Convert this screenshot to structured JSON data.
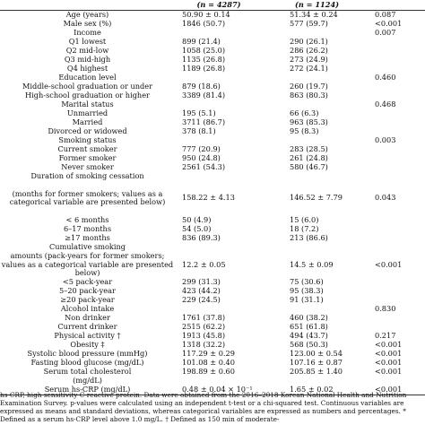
{
  "header": {
    "n1": "(n = 4287)",
    "n2": "(n = 1124)"
  },
  "rows": [
    {
      "label": "Age (years)",
      "v1": "50.90 ± 0.14",
      "v2": "51.34 ± 0.24",
      "p": "0.087"
    },
    {
      "label": "Male sex (%)",
      "v1": "1846 (50.7)",
      "v2": "577 (59.7)",
      "p": "<0.001"
    },
    {
      "label": "Income",
      "v1": "",
      "v2": "",
      "p": "0.007"
    },
    {
      "label": "Q1 lowest",
      "v1": "899 (21.4)",
      "v2": "290 (26.1)",
      "p": ""
    },
    {
      "label": "Q2 mid-low",
      "v1": "1058 (25.0)",
      "v2": "286 (26.2)",
      "p": ""
    },
    {
      "label": "Q3 mid-high",
      "v1": "1135 (26.8)",
      "v2": "273 (24.9)",
      "p": ""
    },
    {
      "label": "Q4 highest",
      "v1": "1189 (26.8)",
      "v2": "272 (24.1)",
      "p": ""
    },
    {
      "label": "Education level",
      "v1": "",
      "v2": "",
      "p": "0.460"
    },
    {
      "label": "Middle-school graduation or under",
      "v1": "879 (18.6)",
      "v2": "260 (19.7)",
      "p": ""
    },
    {
      "label": "High-school graduation or higher",
      "v1": "3389 (81.4)",
      "v2": "863 (80.3)",
      "p": ""
    },
    {
      "label": "Marital status",
      "v1": "",
      "v2": "",
      "p": "0.468"
    },
    {
      "label": "Unmarried",
      "v1": "195 (5.1)",
      "v2": "66 (6.3)",
      "p": ""
    },
    {
      "label": "Married",
      "v1": "3711 (86.7)",
      "v2": "963 (85.3)",
      "p": ""
    },
    {
      "label": "Divorced or widowed",
      "v1": "378 (8.1)",
      "v2": "95 (8.3)",
      "p": ""
    },
    {
      "label": "Smoking status",
      "v1": "",
      "v2": "",
      "p": "0.003"
    },
    {
      "label": "Current smoker",
      "v1": "777 (20.9)",
      "v2": "283 (28.5)",
      "p": ""
    },
    {
      "label": "Former smoker",
      "v1": "950 (24.8)",
      "v2": "261 (24.8)",
      "p": ""
    },
    {
      "label": "Never smoker",
      "v1": "2561 (54.3)",
      "v2": "580 (46.7)",
      "p": ""
    },
    {
      "label": "Duration of smoking cessation",
      "v1": "",
      "v2": "",
      "p": ""
    },
    {
      "label": "(months for former smokers; values as a categorical variable are presented below)",
      "v1": "158.22 ± 4.13",
      "v2": "146.52 ± 7.79",
      "p": "0.043",
      "multi": true,
      "h": 39
    },
    {
      "label": "< 6 months",
      "v1": "50 (4.9)",
      "v2": "15 (6.0)",
      "p": ""
    },
    {
      "label": "6–17 months",
      "v1": "54 (5.0)",
      "v2": "18 (7.2)",
      "p": ""
    },
    {
      "label": "≥17 months",
      "v1": "836 (89.3)",
      "v2": "213 (86.6)",
      "p": ""
    },
    {
      "label": "Cumulative smoking",
      "v1": "",
      "v2": "",
      "p": ""
    },
    {
      "label": "amounts (pack-years for former smokers; values as a categorical variable are presented below)",
      "v1": "12.2 ± 0.05",
      "v2": "14.5 ± 0.09",
      "p": "<0.001",
      "multi": true,
      "h": 29
    },
    {
      "label": "<5 pack-year",
      "v1": "299 (31.3)",
      "v2": "75 (30.6)",
      "p": ""
    },
    {
      "label": "5–20 pack-year",
      "v1": "423 (44.2)",
      "v2": "95 (38.3)",
      "p": ""
    },
    {
      "label": "≥20 pack-year",
      "v1": "229 (24.5)",
      "v2": "91 (31.1)",
      "p": ""
    },
    {
      "label": "Alcohol intake",
      "v1": "",
      "v2": "",
      "p": "0.830"
    },
    {
      "label": "Non drinker",
      "v1": "1761 (37.8)",
      "v2": "460 (38.2)",
      "p": ""
    },
    {
      "label": "Current drinker",
      "v1": "2515 (62.2)",
      "v2": "651 (61.8)",
      "p": ""
    },
    {
      "label": "Physical activity †",
      "v1": "1913 (45.8)",
      "v2": "494 (43.7)",
      "p": "0.217"
    },
    {
      "label": "Obesity ‡",
      "v1": "1318 (32.2)",
      "v2": "568 (50.3)",
      "p": "<0.001"
    },
    {
      "label": "Systolic blood pressure (mmHg)",
      "v1": "117.29 ± 0.29",
      "v2": "123.00 ± 0.54",
      "p": "<0.001"
    },
    {
      "label": "Fasting blood glucose (mg/dL)",
      "v1": "101.08 ± 0.40",
      "v2": "107.16 ± 0.87",
      "p": "<0.001"
    },
    {
      "label": "Serum total cholesterol",
      "v1": "198.89 ± 0.60",
      "v2": "205.85 ± 1.40",
      "p": "<0.001"
    },
    {
      "label": "(mg/dL)",
      "v1": "",
      "v2": "",
      "p": ""
    },
    {
      "label": "Serum hs-CRP (mg/dL)",
      "v1": "0.48 ± 0.04 × 10⁻¹",
      "v2": "1.65 ± 0.02",
      "p": "<0.001"
    }
  ],
  "footnote": "hs-CRP, high sensitivity C-reactive protein. Data were obtained from the 2016–2018 Korean National Health and Nutrition Examination Survey. p-values were calculated using an independent t-test or a chi-squared test. Continuous variables are expressed as means and standard deviations, whereas categorical variables are expressed as numbers and percentages. * Defined as a serum hs-CRP level above 1.0 mg/L. † Defined as 150 min of moderate-"
}
